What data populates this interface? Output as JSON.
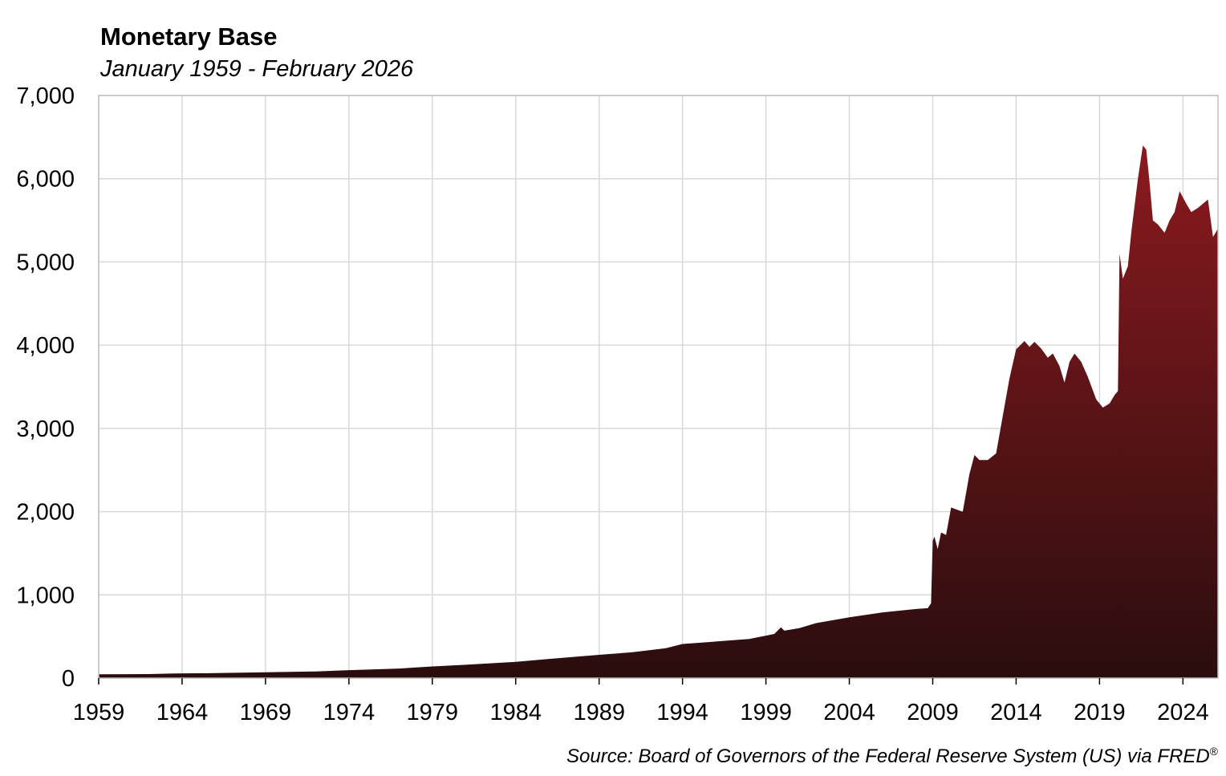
{
  "chart_data": {
    "type": "area",
    "title": "Monetary Base",
    "subtitle": "January 1959 - February 2026",
    "source": "Source: Board of Governors of the Federal Reserve System (US) via FRED",
    "source_mark": "®",
    "xlabel": "",
    "ylabel": "",
    "xlim": [
      1959.0,
      2026.1
    ],
    "ylim": [
      0,
      7000
    ],
    "grid": true,
    "legend": "none",
    "x_ticks": [
      1959,
      1964,
      1969,
      1974,
      1979,
      1984,
      1989,
      1994,
      1999,
      2004,
      2009,
      2014,
      2019,
      2024
    ],
    "x_tick_labels": [
      "1959",
      "1964",
      "1969",
      "1974",
      "1979",
      "1984",
      "1989",
      "1994",
      "1999",
      "2004",
      "2009",
      "2014",
      "2019",
      "2024"
    ],
    "y_ticks": [
      0,
      1000,
      2000,
      3000,
      4000,
      5000,
      6000,
      7000
    ],
    "y_tick_labels": [
      "0",
      "1,000",
      "2,000",
      "3,000",
      "4,000",
      "5,000",
      "6,000",
      "7,000"
    ],
    "colors": {
      "fill_top": "#8b1a1f",
      "fill_bottom": "#2a0d0e",
      "grid": "#d9d9d9",
      "axis": "#bfbfbf"
    },
    "series": [
      {
        "x": [
          1959.0,
          1962.0,
          1963.5,
          1966.0,
          1969.0,
          1972.0,
          1974.0,
          1977.0,
          1979.0,
          1981.0,
          1984.0,
          1986.0,
          1989.0,
          1991.0,
          1993.0,
          1994.0,
          1996.0,
          1998.0,
          1999.5,
          1999.9,
          2000.1,
          2001.0,
          2002.0,
          2004.0,
          2006.0,
          2008.0,
          2008.7,
          2008.9,
          2009.0,
          2009.1,
          2009.3,
          2009.5,
          2009.8,
          2010.1,
          2010.5,
          2010.8,
          2011.2,
          2011.5,
          2011.8,
          2012.3,
          2012.8,
          2013.2,
          2013.6,
          2014.0,
          2014.5,
          2014.8,
          2015.1,
          2015.5,
          2015.9,
          2016.2,
          2016.6,
          2016.9,
          2017.2,
          2017.5,
          2017.9,
          2018.3,
          2018.8,
          2019.2,
          2019.6,
          2019.9,
          2020.1,
          2020.2,
          2020.4,
          2020.7,
          2020.9,
          2021.3,
          2021.6,
          2021.8,
          2022.0,
          2022.2,
          2022.5,
          2022.9,
          2023.2,
          2023.5,
          2023.8,
          2024.2,
          2024.5,
          2024.9,
          2025.2,
          2025.5,
          2025.8,
          2026.1
        ],
        "values": [
          45,
          48,
          55,
          60,
          70,
          80,
          95,
          115,
          140,
          160,
          195,
          230,
          280,
          310,
          360,
          410,
          440,
          470,
          530,
          610,
          570,
          600,
          660,
          730,
          790,
          830,
          840,
          900,
          1650,
          1700,
          1550,
          1750,
          1720,
          2050,
          2020,
          2000,
          2450,
          2680,
          2620,
          2620,
          2700,
          3150,
          3600,
          3950,
          4050,
          3980,
          4040,
          3960,
          3850,
          3900,
          3750,
          3550,
          3800,
          3900,
          3800,
          3620,
          3350,
          3250,
          3300,
          3400,
          3450,
          5100,
          4800,
          4950,
          5350,
          6000,
          6400,
          6350,
          5950,
          5500,
          5450,
          5350,
          5500,
          5600,
          5850,
          5700,
          5600,
          5650,
          5700,
          5750,
          5300,
          5400
        ]
      }
    ]
  }
}
